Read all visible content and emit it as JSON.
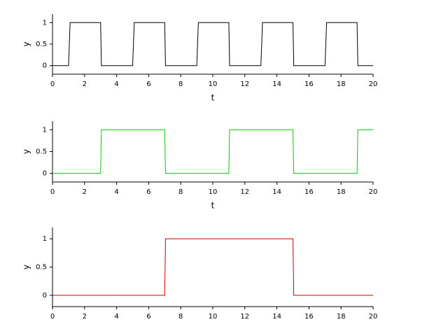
{
  "chart_data": [
    {
      "type": "line",
      "xlabel": "t",
      "ylabel": "y",
      "color": "#000000",
      "x": [
        0,
        1,
        1.1,
        3,
        3.05,
        5,
        5.1,
        7,
        7.05,
        9,
        9.1,
        11,
        11.05,
        13,
        13.1,
        15,
        15.05,
        17,
        17.1,
        19,
        19.05,
        20
      ],
      "values": [
        0,
        0,
        1,
        1,
        0,
        0,
        1,
        1,
        0,
        0,
        1,
        1,
        0,
        0,
        1,
        1,
        0,
        0,
        1,
        1,
        0,
        0
      ],
      "xlim": [
        0,
        20
      ],
      "xticks": [
        0,
        2,
        4,
        6,
        8,
        10,
        12,
        14,
        16,
        18,
        20
      ],
      "ylim": [
        -0.2,
        1.2
      ],
      "yticks": [
        0,
        0.5,
        1
      ]
    },
    {
      "type": "line",
      "xlabel": "t",
      "ylabel": "y",
      "color": "#00cc00",
      "x": [
        0,
        3,
        3.05,
        7,
        7.05,
        11,
        11.05,
        15,
        15.05,
        19,
        19.05,
        20
      ],
      "values": [
        0,
        0,
        1,
        1,
        0,
        0,
        1,
        1,
        0,
        0,
        1,
        1
      ],
      "xlim": [
        0,
        20
      ],
      "xticks": [
        0,
        2,
        4,
        6,
        8,
        10,
        12,
        14,
        16,
        18,
        20
      ],
      "ylim": [
        -0.2,
        1.2
      ],
      "yticks": [
        0,
        0.5,
        1
      ]
    },
    {
      "type": "line",
      "ylabel": "y",
      "color": "#cc0000",
      "x": [
        0,
        7,
        7.05,
        15,
        15.05,
        20
      ],
      "values": [
        0,
        0,
        1,
        1,
        0,
        0
      ],
      "xlim": [
        0,
        20
      ],
      "xticks": [
        0,
        2,
        4,
        6,
        8,
        10,
        12,
        14,
        16,
        18,
        20
      ],
      "ylim": [
        -0.2,
        1.2
      ],
      "yticks": [
        0,
        0.5,
        1
      ]
    }
  ]
}
